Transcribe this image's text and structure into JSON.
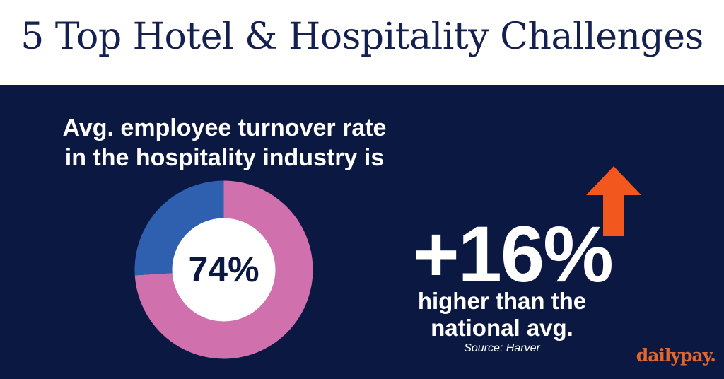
{
  "header": {
    "title": "5 Top Hotel & Hospitality Challenges"
  },
  "colors": {
    "header_bg": "#ffffff",
    "title_color": "#14204f",
    "panel_bg": "#0b1842",
    "donut_primary": "#d070ad",
    "donut_secondary": "#2f5faf",
    "donut_center": "#ffffff",
    "arrow": "#f2571d",
    "brand": "#e0672d"
  },
  "stat": {
    "line1": "Avg. employee turnover rate",
    "line2": "in the hospitality industry is",
    "big_value": "+16%",
    "desc_line1": "higher than the",
    "desc_line2": "national avg.",
    "source": "Source: Harver",
    "arrow_icon": "up-arrow-icon"
  },
  "logo": {
    "text": "dailypay."
  },
  "chart_data": {
    "type": "pie",
    "center_label": "74%",
    "values": [
      74,
      26
    ],
    "colors": [
      "#d070ad",
      "#2f5faf"
    ]
  }
}
